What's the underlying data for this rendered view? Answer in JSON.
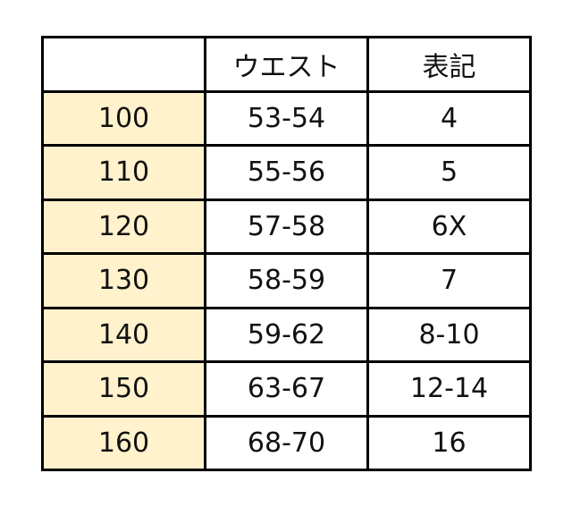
{
  "table": {
    "headers": [
      "",
      "ウエスト",
      "表記"
    ],
    "rows": [
      [
        "100",
        "53-54",
        "4"
      ],
      [
        "110",
        "55-56",
        "5"
      ],
      [
        "120",
        "57-58",
        "6X"
      ],
      [
        "130",
        "58-59",
        "7"
      ],
      [
        "140",
        "59-62",
        "8-10"
      ],
      [
        "150",
        "63-67",
        "12-14"
      ],
      [
        "160",
        "68-70",
        "16"
      ]
    ],
    "highlight_color": "#fff2cc"
  }
}
